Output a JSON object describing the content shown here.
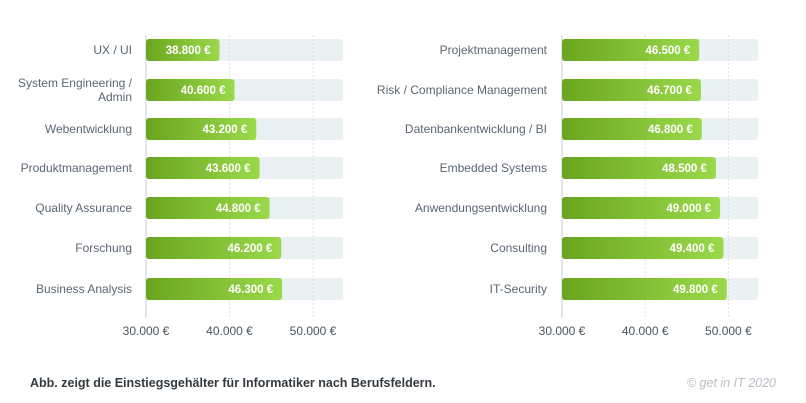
{
  "chart_data": [
    {
      "type": "bar",
      "orientation": "horizontal",
      "title": "",
      "xlabel": "",
      "ylabel": "",
      "categories": [
        "UX / UI",
        "System Engineering / Admin",
        "Webentwicklung",
        "Produktmanagement",
        "Quality Assurance",
        "Forschung",
        "Business Analysis"
      ],
      "values": [
        38800,
        40600,
        43200,
        43600,
        44800,
        46200,
        46300
      ],
      "value_labels": [
        "38.800 €",
        "40.600 €",
        "43.200 €",
        "43.600 €",
        "44.800 €",
        "46.200 €",
        "46.300 €"
      ],
      "xlim": [
        30000,
        53600
      ],
      "xticks": [
        30000,
        40000,
        50000
      ],
      "xtick_labels": [
        "30.000 €",
        "40.000 €",
        "50.000 €"
      ],
      "grid": true
    },
    {
      "type": "bar",
      "orientation": "horizontal",
      "title": "",
      "xlabel": "",
      "ylabel": "",
      "categories": [
        "Projektmanagement",
        "Risk / Compliance Management",
        "Datenbankentwicklung / BI",
        "Embedded Systems",
        "Anwendungsentwicklung",
        "Consulting",
        "IT-Security"
      ],
      "values": [
        46500,
        46700,
        46800,
        48500,
        49000,
        49400,
        49800
      ],
      "value_labels": [
        "46.500 €",
        "46.700 €",
        "46.800 €",
        "48.500 €",
        "49.000 €",
        "49.400 €",
        "49.800 €"
      ],
      "xlim": [
        30000,
        53600
      ],
      "xticks": [
        30000,
        40000,
        50000
      ],
      "xtick_labels": [
        "30.000 €",
        "40.000 €",
        "50.000 €"
      ],
      "grid": true
    }
  ],
  "colors": {
    "bar_start": "#6aa51f",
    "bar_end": "#9bd94b",
    "track": "#ebf0f3",
    "grid": "#d4e0ea",
    "axis": "#d8dde2"
  },
  "footer": {
    "caption": "Abb. zeigt die Einstiegsgehälter für Informatiker nach Berufsfeldern.",
    "credit": "© get in IT 2020"
  }
}
